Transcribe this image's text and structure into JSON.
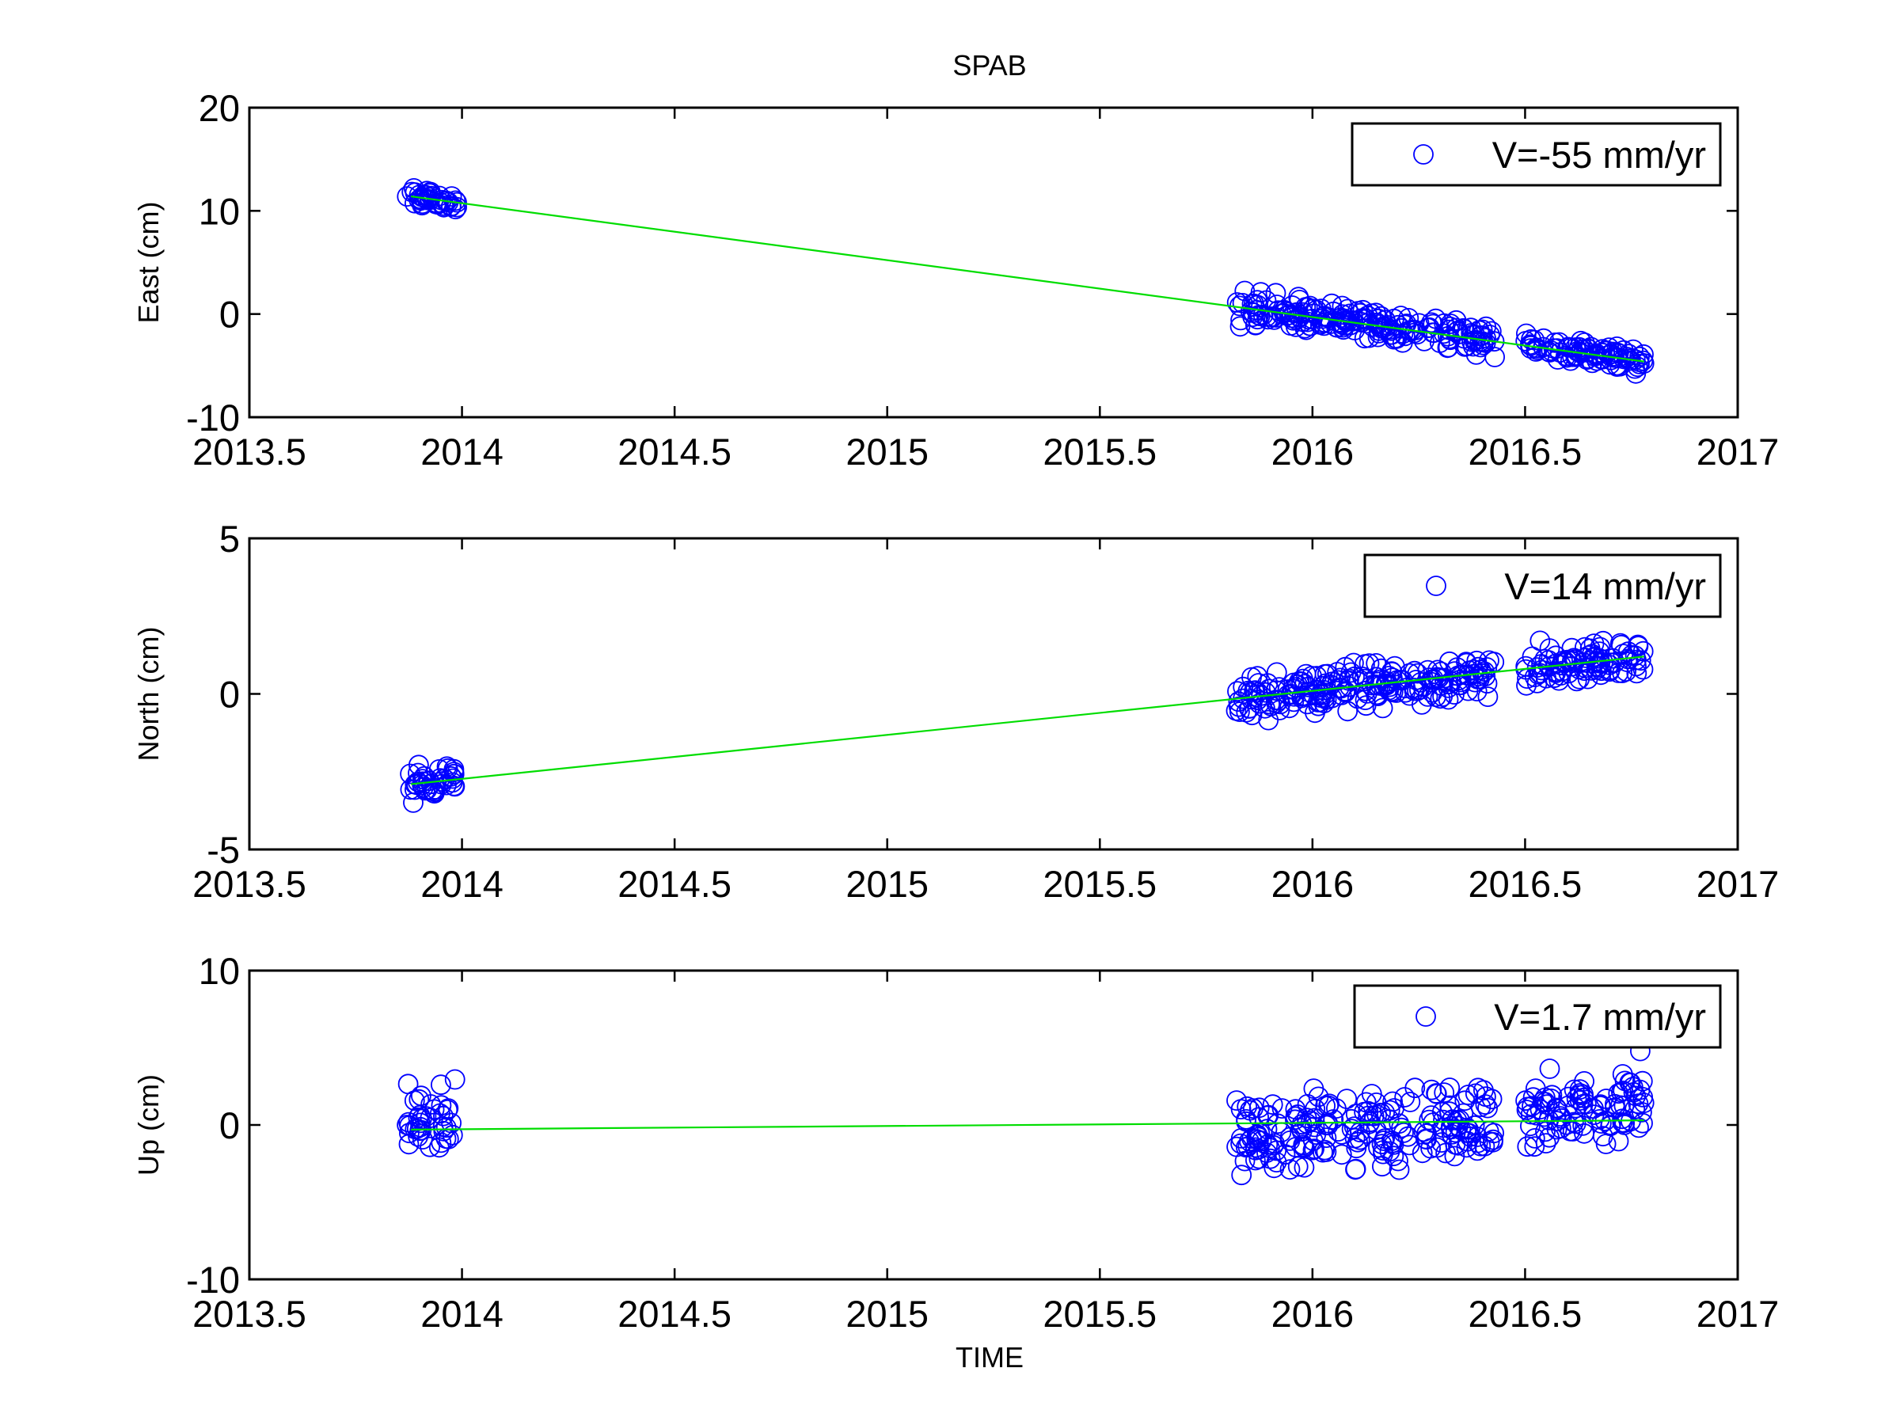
{
  "figure": {
    "title": "SPAB",
    "xlabel": "TIME"
  },
  "chart_data": [
    {
      "type": "scatter",
      "ylabel": "East (cm)",
      "xlim": [
        2013.5,
        2017
      ],
      "ylim": [
        -10,
        20
      ],
      "x_ticks": [
        "2013.5",
        "2014",
        "2014.5",
        "2015",
        "2015.5",
        "2016",
        "2016.5",
        "2017"
      ],
      "y_ticks": [
        "-10",
        "0",
        "10",
        "20"
      ],
      "legend": "V=-55 mm/yr",
      "legend_position": "top-right",
      "marker_color": "#0000ff",
      "fit_color": "#00dd00",
      "fit_line": {
        "x": [
          2013.88,
          2016.78
        ],
        "y": [
          11.4,
          -4.6
        ]
      },
      "clusters": [
        {
          "x_range": [
            2013.87,
            2013.99
          ],
          "y_start": 11.4,
          "y_end": 10.7,
          "spread": 0.9
        },
        {
          "x_range": [
            2015.82,
            2016.43
          ],
          "y_start": 0.8,
          "y_end": -2.6,
          "spread": 1.5
        },
        {
          "x_range": [
            2016.5,
            2016.78
          ],
          "y_start": -3.0,
          "y_end": -4.5,
          "spread": 1.2
        }
      ]
    },
    {
      "type": "scatter",
      "ylabel": "North (cm)",
      "xlim": [
        2013.5,
        2017
      ],
      "ylim": [
        -5,
        5
      ],
      "x_ticks": [
        "2013.5",
        "2014",
        "2014.5",
        "2015",
        "2015.5",
        "2016",
        "2016.5",
        "2017"
      ],
      "y_ticks": [
        "-5",
        "0",
        "5"
      ],
      "legend": "V=14 mm/yr",
      "legend_position": "top-right",
      "marker_color": "#0000ff",
      "fit_color": "#00dd00",
      "fit_line": {
        "x": [
          2013.88,
          2016.78
        ],
        "y": [
          -2.9,
          1.2
        ]
      },
      "clusters": [
        {
          "x_range": [
            2013.87,
            2013.99
          ],
          "y_start": -2.9,
          "y_end": -2.8,
          "spread": 0.6
        },
        {
          "x_range": [
            2015.82,
            2016.43
          ],
          "y_start": -0.1,
          "y_end": 0.6,
          "spread": 0.7
        },
        {
          "x_range": [
            2016.5,
            2016.78
          ],
          "y_start": 0.8,
          "y_end": 1.2,
          "spread": 0.6
        }
      ]
    },
    {
      "type": "scatter",
      "ylabel": "Up (cm)",
      "xlim": [
        2013.5,
        2017
      ],
      "ylim": [
        -10,
        10
      ],
      "x_ticks": [
        "2013.5",
        "2014",
        "2014.5",
        "2015",
        "2015.5",
        "2016",
        "2016.5",
        "2017"
      ],
      "y_ticks": [
        "-10",
        "0",
        "10"
      ],
      "legend": "V=1.7 mm/yr",
      "legend_position": "top-right",
      "marker_color": "#0000ff",
      "fit_color": "#00dd00",
      "fit_line": {
        "x": [
          2013.88,
          2016.78
        ],
        "y": [
          -0.3,
          0.3
        ]
      },
      "clusters": [
        {
          "x_range": [
            2013.87,
            2013.99
          ],
          "y_start": 0.5,
          "y_end": 0.2,
          "spread": 2.5
        },
        {
          "x_range": [
            2015.82,
            2016.43
          ],
          "y_start": -0.8,
          "y_end": 0.3,
          "spread": 2.6
        },
        {
          "x_range": [
            2016.5,
            2016.78
          ],
          "y_start": 0.6,
          "y_end": 1.6,
          "spread": 2.3
        }
      ]
    }
  ]
}
